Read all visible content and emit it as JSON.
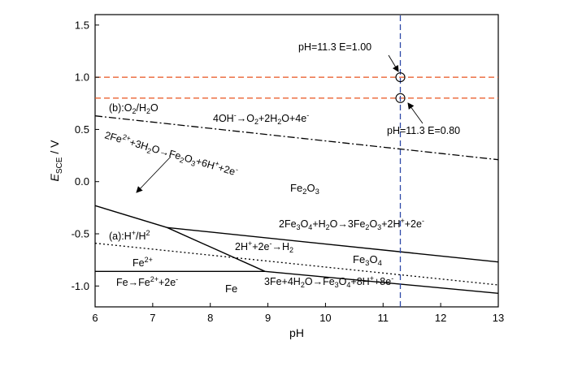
{
  "chart_data": {
    "type": "line",
    "title": "",
    "xlabel": "pH",
    "ylabel_main": "E",
    "ylabel_sub": "SCE",
    "ylabel_unit": " / V",
    "xlim": [
      6,
      13
    ],
    "ylim": [
      -1.2,
      1.6
    ],
    "xticks": [
      6,
      7,
      8,
      9,
      10,
      11,
      12,
      13
    ],
    "yticks": [
      -1.0,
      -0.5,
      0.0,
      0.5,
      1.0,
      1.5
    ],
    "grid": false,
    "series": [
      {
        "style": "dashdot",
        "color": "#000000",
        "points": [
          [
            6,
            0.63
          ],
          [
            13,
            0.21
          ]
        ]
      },
      {
        "style": "dotted",
        "color": "#000000",
        "points": [
          [
            6,
            -0.59
          ],
          [
            13,
            -0.99
          ]
        ]
      },
      {
        "style": "solid",
        "color": "#000000",
        "points": [
          [
            6,
            -0.86
          ],
          [
            8.95,
            -0.86
          ]
        ]
      },
      {
        "style": "solid",
        "color": "#000000",
        "points": [
          [
            6,
            -0.23
          ],
          [
            7.25,
            -0.44
          ],
          [
            8.95,
            -0.86
          ]
        ]
      },
      {
        "style": "solid",
        "color": "#000000",
        "points": [
          [
            7.25,
            -0.44
          ],
          [
            13,
            -0.77
          ]
        ]
      },
      {
        "style": "solid",
        "color": "#000000",
        "points": [
          [
            8.95,
            -0.86
          ],
          [
            13,
            -1.07
          ]
        ]
      },
      {
        "style": "dashed",
        "color": "#e8531f",
        "points": [
          [
            6,
            1.0
          ],
          [
            13,
            1.0
          ]
        ]
      },
      {
        "style": "dashed",
        "color": "#e8531f",
        "points": [
          [
            6,
            0.8
          ],
          [
            13,
            0.8
          ]
        ]
      },
      {
        "style": "dashed",
        "color": "#2e4aa8",
        "points": [
          [
            11.3,
            -1.2
          ],
          [
            11.3,
            1.6
          ]
        ]
      }
    ],
    "markers": [
      {
        "x": 11.3,
        "y": 1.0
      },
      {
        "x": 11.3,
        "y": 0.8
      }
    ],
    "annotations": {
      "point1": "pH=11.3 E=1.00",
      "point2": "pH=11.3 E=0.80",
      "b_label_a": "(b):O",
      "b_label_b": "2",
      "b_label_c": "/H",
      "b_label_d": "2",
      "b_label_e": "O",
      "oh_a": "4OH",
      "oh_b": "-",
      "oh_c": "→O",
      "oh_d": "2",
      "oh_e": "+2H",
      "oh_f": "2",
      "oh_g": "O+4e",
      "oh_h": "-",
      "fe2_a": "2Fe",
      "fe2_b": "2+",
      "fe2_c": "+3H",
      "fe2_d": "2",
      "fe2_e": "O→Fe",
      "fe2_f": "2",
      "fe2_g": "O",
      "fe2_h": "3",
      "fe2_i": "+6H",
      "fe2_j": "+",
      "fe2_k": "+2e",
      "fe2_l": "-",
      "fe2o3_a": "Fe",
      "fe2o3_b": "2",
      "fe2o3_c": "O",
      "fe2o3_d": "3",
      "m_a": "2Fe",
      "m_b": "3",
      "m_c": "O",
      "m_d": "4",
      "m_e": "+H",
      "m_f": "2",
      "m_g": "O→3Fe",
      "m_h": "2",
      "m_i": "O",
      "m_j": "3",
      "m_k": "+2H",
      "m_l": "+",
      "m_m": "+2e",
      "m_n": "-",
      "a_a": "(a):H",
      "a_b": "+",
      "a_c": "/H",
      "a_d": "2",
      "h_a": "2H",
      "h_b": "+",
      "h_c": "+2e",
      "h_d": "-",
      "h_e": "→H",
      "h_f": "2",
      "fe3o4_a": "Fe",
      "fe3o4_b": "3",
      "fe3o4_c": "O",
      "fe3o4_d": "4",
      "fe2p_a": "Fe",
      "fe2p_b": "2+",
      "fefe_a": "Fe→Fe",
      "fefe_b": "2+",
      "fefe_c": "+2e",
      "fefe_d": "-",
      "fe": "Fe",
      "fe34_a": "3Fe+4H",
      "fe34_b": "2",
      "fe34_c": "O→Fe",
      "fe34_d": "3",
      "fe34_e": "O",
      "fe34_f": "4",
      "fe34_g": "+8H",
      "fe34_h": "+",
      "fe34_i": "+8e",
      "fe34_j": "-"
    }
  }
}
